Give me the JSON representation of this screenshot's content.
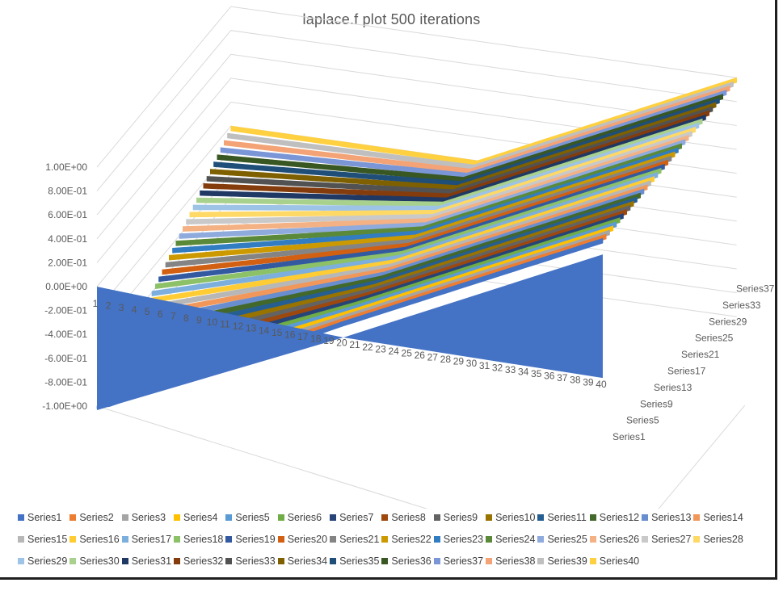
{
  "chart_data": {
    "type": "surface-3d-ribbon",
    "title": "laplace.f  plot 500 iterations",
    "categories": [
      "1",
      "2",
      "3",
      "4",
      "5",
      "6",
      "7",
      "8",
      "9",
      "10",
      "11",
      "12",
      "13",
      "14",
      "15",
      "16",
      "17",
      "18",
      "19",
      "20",
      "21",
      "22",
      "23",
      "24",
      "25",
      "26",
      "27",
      "28",
      "29",
      "30",
      "31",
      "32",
      "33",
      "34",
      "35",
      "36",
      "37",
      "38",
      "39",
      "40"
    ],
    "y_ticks": [
      "1.00E+00",
      "8.00E-01",
      "6.00E-01",
      "4.00E-01",
      "2.00E-01",
      "0.00E+00",
      "-2.00E-01",
      "-4.00E-01",
      "-6.00E-01",
      "-8.00E-01",
      "-1.00E+00"
    ],
    "ylim": [
      -1,
      1
    ],
    "depth_labels": [
      "Series1",
      "Series5",
      "Series9",
      "Series13",
      "Series17",
      "Series21",
      "Series25",
      "Series29",
      "Series33",
      "Series37"
    ],
    "series_profile": {
      "Series1": {
        "x1_value": -1.0,
        "x20_value": 0.0,
        "x40_value": 1.0
      },
      "Series40": {
        "x1_value": 0.0,
        "x20_value": 0.0,
        "x40_value": 1.0
      }
    },
    "legend_position": "bottom",
    "series": [
      {
        "name": "Series1",
        "color": "#4472C4"
      },
      {
        "name": "Series2",
        "color": "#ED7D31"
      },
      {
        "name": "Series3",
        "color": "#A5A5A5"
      },
      {
        "name": "Series4",
        "color": "#FFC000"
      },
      {
        "name": "Series5",
        "color": "#5B9BD5"
      },
      {
        "name": "Series6",
        "color": "#70AD47"
      },
      {
        "name": "Series7",
        "color": "#264478"
      },
      {
        "name": "Series8",
        "color": "#9E480E"
      },
      {
        "name": "Series9",
        "color": "#636363"
      },
      {
        "name": "Series10",
        "color": "#997300"
      },
      {
        "name": "Series11",
        "color": "#255E91"
      },
      {
        "name": "Series12",
        "color": "#43682B"
      },
      {
        "name": "Series13",
        "color": "#698ED0"
      },
      {
        "name": "Series14",
        "color": "#F1975A"
      },
      {
        "name": "Series15",
        "color": "#B7B7B7"
      },
      {
        "name": "Series16",
        "color": "#FFCD33"
      },
      {
        "name": "Series17",
        "color": "#7CAFDD"
      },
      {
        "name": "Series18",
        "color": "#8CC168"
      },
      {
        "name": "Series19",
        "color": "#335AA1"
      },
      {
        "name": "Series20",
        "color": "#D26012"
      },
      {
        "name": "Series21",
        "color": "#848484"
      },
      {
        "name": "Series22",
        "color": "#CC9A00"
      },
      {
        "name": "Series23",
        "color": "#327DC2"
      },
      {
        "name": "Series24",
        "color": "#5A8A39"
      },
      {
        "name": "Series25",
        "color": "#8FAADC"
      },
      {
        "name": "Series26",
        "color": "#F4B183"
      },
      {
        "name": "Series27",
        "color": "#C9C9C9"
      },
      {
        "name": "Series28",
        "color": "#FFD966"
      },
      {
        "name": "Series29",
        "color": "#9DC3E6"
      },
      {
        "name": "Series30",
        "color": "#A9D18E"
      },
      {
        "name": "Series31",
        "color": "#203864"
      },
      {
        "name": "Series32",
        "color": "#843C0C"
      },
      {
        "name": "Series33",
        "color": "#525252"
      },
      {
        "name": "Series34",
        "color": "#7F6000"
      },
      {
        "name": "Series35",
        "color": "#1F4E79"
      },
      {
        "name": "Series36",
        "color": "#385723"
      },
      {
        "name": "Series37",
        "color": "#7A96D6"
      },
      {
        "name": "Series38",
        "color": "#F3A375"
      },
      {
        "name": "Series39",
        "color": "#BFBFBF"
      },
      {
        "name": "Series40",
        "color": "#FFD040"
      }
    ]
  }
}
